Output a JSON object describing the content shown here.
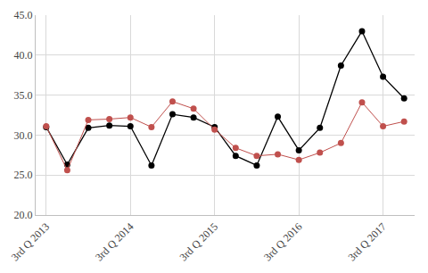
{
  "chart_data": {
    "type": "line",
    "categories": [
      "3rd Q 2013",
      null,
      null,
      null,
      "3rd Q 2014",
      null,
      null,
      null,
      "3rd Q 2015",
      null,
      null,
      null,
      "3rd Q 2016",
      null,
      null,
      null,
      "3rd Q 2017",
      null
    ],
    "series": [
      {
        "color": "#000000",
        "marker": "circle",
        "line_style": "solid",
        "values": [
          31.0,
          26.3,
          30.9,
          31.2,
          31.1,
          26.2,
          32.6,
          32.2,
          31.0,
          27.4,
          26.2,
          32.3,
          28.1,
          30.9,
          38.7,
          43.0,
          37.3,
          34.6
        ]
      },
      {
        "color": "#c0504d",
        "marker": "circle",
        "line_style": "solid",
        "values": [
          31.1,
          25.6,
          31.9,
          32.0,
          32.2,
          31.0,
          34.2,
          33.3,
          30.7,
          28.4,
          27.4,
          27.6,
          26.9,
          27.8,
          29.0,
          34.1,
          31.1,
          31.7
        ]
      }
    ],
    "ylim": [
      20,
      45
    ],
    "yticks": [
      {
        "value": 20,
        "label": "20.0"
      },
      {
        "value": 25,
        "label": "25.0"
      },
      {
        "value": 30,
        "label": "30.0"
      },
      {
        "value": 35,
        "label": "35.0"
      },
      {
        "value": 40,
        "label": "40.0"
      },
      {
        "value": 45,
        "label": "45.0"
      }
    ],
    "grid": true
  }
}
